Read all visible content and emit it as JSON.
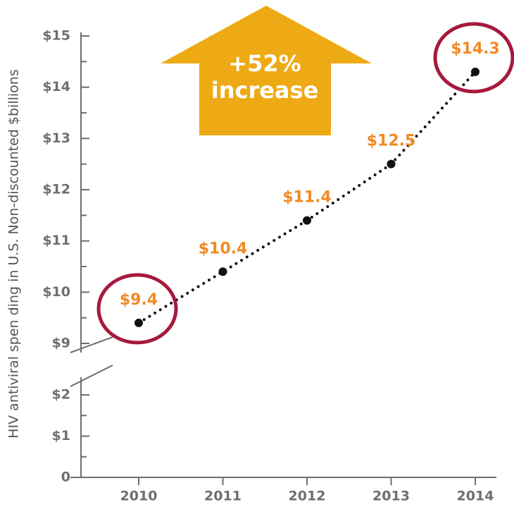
{
  "chart_data": {
    "type": "line",
    "y_label": "HIV antiviral spen ding in U.S. Non-discounted $billions",
    "annotation": [
      "+52%",
      "increase"
    ],
    "categories": [
      "2010",
      "2011",
      "2012",
      "2013",
      "2014"
    ],
    "values": [
      9.4,
      10.4,
      11.4,
      12.5,
      14.3
    ],
    "value_labels": [
      "$9.4",
      "$10.4",
      "$11.4",
      "$12.5",
      "$14.3"
    ],
    "color": "#111111",
    "label_color": "#f08a24",
    "highlight_color": "#a6193c",
    "arrow_color": "#eeaa14",
    "highlight": [
      0,
      4
    ],
    "ylim": [
      0,
      15
    ],
    "ybreak": [
      2,
      9
    ],
    "yticks": [
      0,
      {
        "value": 1,
        "label": "$1"
      },
      {
        "value": 2,
        "label": "$2"
      },
      {
        "value": 9,
        "label": "$9"
      },
      {
        "value": 10,
        "label": "$10"
      },
      {
        "value": 11,
        "label": "$11"
      },
      {
        "value": 12,
        "label": "$12"
      },
      {
        "value": 13,
        "label": "$13"
      },
      {
        "value": 14,
        "label": "$14"
      },
      {
        "value": 15,
        "label": "$15"
      }
    ],
    "minor_yticks": [
      0.5,
      1.5,
      9.5,
      10.5,
      11.5,
      12.5,
      13.5,
      14.5
    ]
  }
}
